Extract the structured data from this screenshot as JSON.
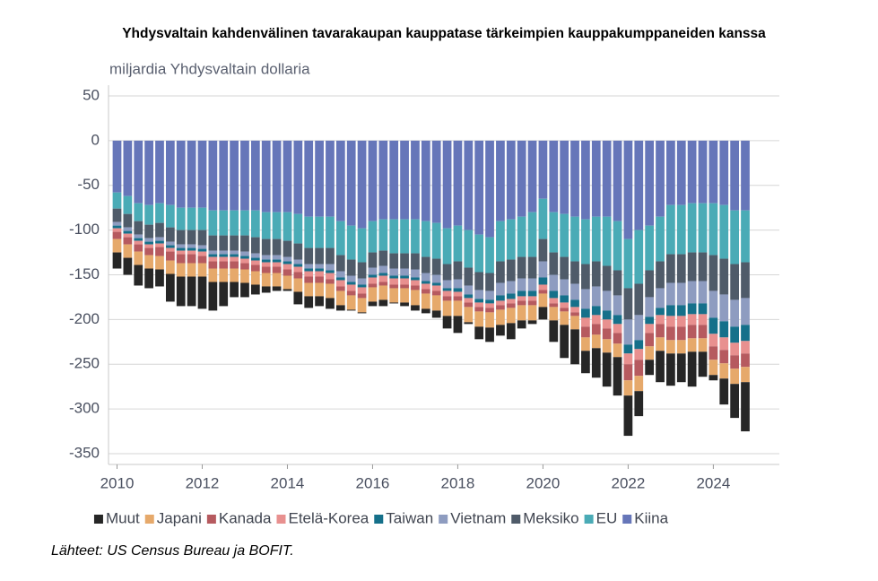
{
  "chart_data": {
    "type": "stacked_bar",
    "title": "Yhdysvaltain kahdenvälinen tavarakaupan kauppatase tärkeimpien kauppakumppaneiden kanssa",
    "y_label": "miljardia Yhdysvaltain dollaria",
    "source": "Lähteet: US Census Bureau ja BOFIT.",
    "x": [
      2010,
      2010.25,
      2010.5,
      2010.75,
      2011,
      2011.25,
      2011.5,
      2011.75,
      2012,
      2012.25,
      2012.5,
      2012.75,
      2013,
      2013.25,
      2013.5,
      2013.75,
      2014,
      2014.25,
      2014.5,
      2014.75,
      2015,
      2015.25,
      2015.5,
      2015.75,
      2016,
      2016.25,
      2016.5,
      2016.75,
      2017,
      2017.25,
      2017.5,
      2017.75,
      2018,
      2018.25,
      2018.5,
      2018.75,
      2019,
      2019.25,
      2019.5,
      2019.75,
      2020,
      2020.25,
      2020.5,
      2020.75,
      2021,
      2021.25,
      2021.5,
      2021.75,
      2022,
      2022.25,
      2022.5,
      2022.75,
      2023,
      2023.25,
      2023.5,
      2023.75,
      2024,
      2024.25,
      2024.5,
      2024.75
    ],
    "xlim": [
      2009.8,
      2025.55
    ],
    "xticks": [
      2010,
      2012,
      2014,
      2016,
      2018,
      2020,
      2022,
      2024
    ],
    "ylim": [
      -362,
      62
    ],
    "yticks": [
      50,
      0,
      -50,
      -100,
      -150,
      -200,
      -250,
      -300,
      -350
    ],
    "grid": true,
    "legend": "bottom",
    "series": [
      {
        "name": "Muut",
        "color": "#262626",
        "values": [
          -18,
          -19,
          -23,
          -22,
          -19,
          -31,
          -33,
          -33,
          -36,
          -32,
          -27,
          -17,
          -16,
          -11,
          -7,
          -5,
          -2,
          -14,
          -13,
          -11,
          -12,
          -6,
          -1,
          -1,
          -5,
          -7,
          -1,
          -4,
          -6,
          -5,
          -8,
          -14,
          -19,
          -2,
          -14,
          -16,
          -12,
          -18,
          -9,
          -4,
          -14,
          -24,
          -37,
          -39,
          -25,
          -33,
          -38,
          -43,
          -45,
          -28,
          -17,
          -35,
          -36,
          -32,
          -39,
          -28,
          -6,
          -29,
          -38,
          -55
        ]
      },
      {
        "name": "Japani",
        "color": "#e6a96b",
        "values": [
          -15,
          -15,
          -15,
          -15,
          -15,
          -15,
          -15,
          -15,
          -15,
          -15,
          -15,
          -15,
          -15,
          -15,
          -15,
          -15,
          -15,
          -15,
          -15,
          -15,
          -16,
          -16,
          -16,
          -16,
          -16,
          -16,
          -16,
          -16,
          -17,
          -17,
          -17,
          -17,
          -17,
          -17,
          -17,
          -17,
          -17,
          -17,
          -17,
          -17,
          -15,
          -15,
          -15,
          -15,
          -15,
          -15,
          -15,
          -15,
          -17,
          -17,
          -15,
          -15,
          -15,
          -15,
          -15,
          -15,
          -17,
          -17,
          -17,
          -17
        ]
      },
      {
        "name": "Kanada",
        "color": "#b65a5f",
        "values": [
          -8,
          -8,
          -8,
          -8,
          -10,
          -10,
          -10,
          -10,
          -8,
          -8,
          -8,
          -8,
          -7,
          -7,
          -7,
          -7,
          -7,
          -7,
          -7,
          -7,
          -5,
          -5,
          -5,
          -5,
          -4,
          -4,
          -4,
          -4,
          -5,
          -5,
          -5,
          -5,
          -5,
          -5,
          -5,
          -5,
          -5,
          -5,
          -5,
          -5,
          -4,
          -4,
          -4,
          -4,
          -12,
          -12,
          -12,
          -12,
          -18,
          -18,
          -15,
          -15,
          -15,
          -15,
          -15,
          -15,
          -15,
          -15,
          -15,
          -15
        ]
      },
      {
        "name": "Etelä-Korea",
        "color": "#e8908f",
        "values": [
          -4,
          -4,
          -4,
          -4,
          -4,
          -4,
          -4,
          -4,
          -5,
          -5,
          -5,
          -5,
          -5,
          -5,
          -5,
          -5,
          -6,
          -6,
          -6,
          -6,
          -7,
          -7,
          -7,
          -7,
          -7,
          -7,
          -7,
          -7,
          -6,
          -6,
          -6,
          -6,
          -5,
          -5,
          -5,
          -5,
          -5,
          -5,
          -5,
          -5,
          -6,
          -6,
          -6,
          -6,
          -10,
          -10,
          -10,
          -10,
          -12,
          -12,
          -10,
          -10,
          -12,
          -12,
          -12,
          -12,
          -14,
          -14,
          -14,
          -14
        ]
      },
      {
        "name": "Taiwan",
        "color": "#15708a",
        "values": [
          -3,
          -3,
          -3,
          -3,
          -3,
          -3,
          -3,
          -3,
          -3,
          -3,
          -3,
          -3,
          -3,
          -3,
          -3,
          -3,
          -3,
          -3,
          -3,
          -3,
          -3,
          -3,
          -3,
          -3,
          -3,
          -3,
          -3,
          -3,
          -3,
          -3,
          -3,
          -3,
          -4,
          -4,
          -4,
          -4,
          -6,
          -6,
          -6,
          -6,
          -8,
          -8,
          -8,
          -8,
          -10,
          -10,
          -10,
          -10,
          -10,
          -10,
          -8,
          -8,
          -12,
          -12,
          -12,
          -12,
          -18,
          -18,
          -18,
          -18
        ]
      },
      {
        "name": "Vietnam",
        "color": "#8e9cc0",
        "values": [
          -4,
          -4,
          -4,
          -4,
          -4,
          -4,
          -4,
          -4,
          -4,
          -4,
          -4,
          -4,
          -5,
          -5,
          -5,
          -5,
          -5,
          -5,
          -5,
          -5,
          -7,
          -7,
          -7,
          -7,
          -8,
          -8,
          -8,
          -8,
          -9,
          -9,
          -9,
          -9,
          -10,
          -10,
          -10,
          -10,
          -14,
          -14,
          -14,
          -14,
          -18,
          -18,
          -18,
          -18,
          -22,
          -22,
          -22,
          -22,
          -28,
          -28,
          -22,
          -22,
          -25,
          -25,
          -25,
          -25,
          -30,
          -30,
          -30,
          -30
        ]
      },
      {
        "name": "Meksiko",
        "color": "#4f5b69",
        "values": [
          -15,
          -15,
          -15,
          -15,
          -16,
          -16,
          -16,
          -16,
          -17,
          -17,
          -17,
          -17,
          -18,
          -18,
          -18,
          -18,
          -18,
          -18,
          -18,
          -18,
          -18,
          -18,
          -18,
          -18,
          -17,
          -17,
          -17,
          -17,
          -18,
          -18,
          -18,
          -18,
          -20,
          -20,
          -20,
          -20,
          -24,
          -24,
          -24,
          -24,
          -25,
          -25,
          -25,
          -25,
          -28,
          -28,
          -28,
          -28,
          -35,
          -35,
          -30,
          -30,
          -32,
          -32,
          -32,
          -32,
          -40,
          -40,
          -40,
          -40
        ]
      },
      {
        "name": "EU",
        "color": "#4aabb6",
        "values": [
          -18,
          -20,
          -20,
          -22,
          -22,
          -25,
          -25,
          -25,
          -25,
          -28,
          -28,
          -28,
          -28,
          -30,
          -30,
          -30,
          -32,
          -33,
          -35,
          -35,
          -35,
          -38,
          -38,
          -38,
          -35,
          -35,
          -38,
          -38,
          -38,
          -40,
          -40,
          -40,
          -40,
          -42,
          -42,
          -40,
          -45,
          -45,
          -45,
          -50,
          -45,
          -45,
          -48,
          -50,
          -50,
          -50,
          -55,
          -55,
          -55,
          -60,
          -50,
          -50,
          -55,
          -55,
          -55,
          -55,
          -58,
          -60,
          -60,
          -58
        ]
      },
      {
        "name": "Kiina",
        "color": "#6676b9",
        "values": [
          -58,
          -62,
          -70,
          -72,
          -70,
          -72,
          -75,
          -75,
          -75,
          -78,
          -78,
          -78,
          -78,
          -78,
          -80,
          -80,
          -80,
          -82,
          -85,
          -85,
          -85,
          -90,
          -95,
          -98,
          -90,
          -88,
          -88,
          -88,
          -88,
          -90,
          -92,
          -98,
          -95,
          -100,
          -105,
          -108,
          -90,
          -88,
          -85,
          -80,
          -65,
          -80,
          -82,
          -85,
          -88,
          -85,
          -85,
          -90,
          -110,
          -100,
          -95,
          -85,
          -72,
          -72,
          -70,
          -70,
          -70,
          -72,
          -78,
          -78
        ]
      }
    ]
  }
}
